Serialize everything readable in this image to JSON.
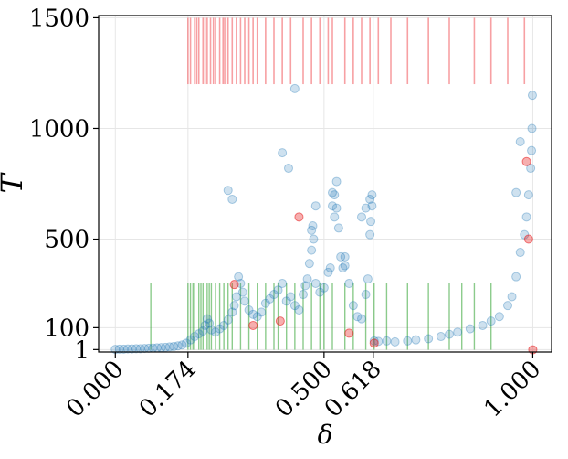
{
  "chart_data": {
    "type": "scatter",
    "xlabel": "δ",
    "ylabel": "T",
    "xlim": [
      -0.04,
      1.045
    ],
    "ylim": [
      -10,
      1510
    ],
    "x_ticks": [
      {
        "value": 0.0,
        "label": "0.000"
      },
      {
        "value": 0.174,
        "label": "0.174"
      },
      {
        "value": 0.5,
        "label": "0.500"
      },
      {
        "value": 0.618,
        "label": "0.618"
      },
      {
        "value": 1.0,
        "label": "1.000"
      }
    ],
    "y_ticks": [
      {
        "value": 1,
        "label": "1"
      },
      {
        "value": 100,
        "label": "100"
      },
      {
        "value": 500,
        "label": "500"
      },
      {
        "value": 1000,
        "label": "1000"
      },
      {
        "value": 1500,
        "label": "1500"
      }
    ],
    "x_tick_rotation_deg": 45,
    "grid": true,
    "legend": "none",
    "colors": {
      "main_points": "#1f77b4",
      "highlight_points": "#e6191b",
      "red_rug": "#f4787c",
      "green_rug": "#2ca02c",
      "grid": "#e6e6e6"
    },
    "series": [
      {
        "marker": "circle",
        "color": "#1f77b4",
        "alpha": 0.22,
        "points": [
          [
            0.0,
            2
          ],
          [
            0.01,
            3
          ],
          [
            0.02,
            3
          ],
          [
            0.03,
            4
          ],
          [
            0.04,
            4
          ],
          [
            0.05,
            5
          ],
          [
            0.06,
            5
          ],
          [
            0.07,
            6
          ],
          [
            0.08,
            7
          ],
          [
            0.09,
            8
          ],
          [
            0.1,
            9
          ],
          [
            0.11,
            10
          ],
          [
            0.12,
            11
          ],
          [
            0.13,
            13
          ],
          [
            0.14,
            15
          ],
          [
            0.15,
            18
          ],
          [
            0.16,
            22
          ],
          [
            0.17,
            30
          ],
          [
            0.18,
            45
          ],
          [
            0.19,
            60
          ],
          [
            0.2,
            72
          ],
          [
            0.21,
            85
          ],
          [
            0.215,
            110
          ],
          [
            0.22,
            140
          ],
          [
            0.225,
            120
          ],
          [
            0.23,
            90
          ],
          [
            0.24,
            80
          ],
          [
            0.25,
            95
          ],
          [
            0.26,
            110
          ],
          [
            0.27,
            135
          ],
          [
            0.28,
            170
          ],
          [
            0.285,
            200
          ],
          [
            0.29,
            240
          ],
          [
            0.295,
            330
          ],
          [
            0.3,
            300
          ],
          [
            0.305,
            260
          ],
          [
            0.31,
            220
          ],
          [
            0.32,
            180
          ],
          [
            0.33,
            160
          ],
          [
            0.34,
            150
          ],
          [
            0.35,
            170
          ],
          [
            0.36,
            210
          ],
          [
            0.37,
            230
          ],
          [
            0.38,
            250
          ],
          [
            0.39,
            270
          ],
          [
            0.4,
            300
          ],
          [
            0.41,
            220
          ],
          [
            0.42,
            240
          ],
          [
            0.43,
            200
          ],
          [
            0.44,
            180
          ],
          [
            0.45,
            250
          ],
          [
            0.455,
            290
          ],
          [
            0.46,
            320
          ],
          [
            0.465,
            390
          ],
          [
            0.47,
            450
          ],
          [
            0.48,
            300
          ],
          [
            0.49,
            260
          ],
          [
            0.5,
            280
          ],
          [
            0.51,
            350
          ],
          [
            0.515,
            370
          ],
          [
            0.52,
            650
          ],
          [
            0.525,
            700
          ],
          [
            0.53,
            640
          ],
          [
            0.535,
            550
          ],
          [
            0.54,
            420
          ],
          [
            0.55,
            380
          ],
          [
            0.56,
            300
          ],
          [
            0.57,
            200
          ],
          [
            0.58,
            150
          ],
          [
            0.59,
            140
          ],
          [
            0.6,
            250
          ],
          [
            0.605,
            320
          ],
          [
            0.61,
            520
          ],
          [
            0.612,
            580
          ],
          [
            0.615,
            650
          ],
          [
            0.62,
            40
          ],
          [
            0.63,
            38
          ],
          [
            0.65,
            40
          ],
          [
            0.67,
            36
          ],
          [
            0.7,
            40
          ],
          [
            0.72,
            45
          ],
          [
            0.75,
            50
          ],
          [
            0.78,
            60
          ],
          [
            0.8,
            70
          ],
          [
            0.82,
            80
          ],
          [
            0.85,
            95
          ],
          [
            0.88,
            110
          ],
          [
            0.9,
            130
          ],
          [
            0.92,
            150
          ],
          [
            0.94,
            200
          ],
          [
            0.95,
            240
          ],
          [
            0.96,
            330
          ],
          [
            0.97,
            440
          ],
          [
            0.98,
            520
          ],
          [
            0.985,
            600
          ],
          [
            0.99,
            700
          ],
          [
            0.995,
            820
          ],
          [
            0.997,
            900
          ],
          [
            0.998,
            1000
          ],
          [
            0.999,
            1150
          ],
          [
            0.27,
            720
          ],
          [
            0.28,
            680
          ],
          [
            0.4,
            890
          ],
          [
            0.415,
            820
          ],
          [
            0.47,
            540
          ],
          [
            0.473,
            560
          ],
          [
            0.475,
            500
          ],
          [
            0.48,
            650
          ],
          [
            0.545,
            370
          ],
          [
            0.55,
            420
          ],
          [
            0.59,
            600
          ],
          [
            0.6,
            640
          ],
          [
            0.61,
            680
          ],
          [
            0.615,
            700
          ],
          [
            0.43,
            1180
          ],
          [
            0.52,
            710
          ],
          [
            0.53,
            760
          ],
          [
            0.525,
            600
          ],
          [
            0.96,
            710
          ],
          [
            0.97,
            940
          ]
        ]
      },
      {
        "marker": "circle",
        "color": "#e6191b",
        "alpha": 0.35,
        "points": [
          [
            0.285,
            295
          ],
          [
            0.395,
            130
          ],
          [
            0.33,
            110
          ],
          [
            0.56,
            75
          ],
          [
            0.62,
            30
          ],
          [
            0.44,
            600
          ],
          [
            0.985,
            850
          ],
          [
            0.99,
            500
          ],
          [
            1.0,
            0
          ]
        ]
      }
    ],
    "rug_red": {
      "color": "#f4787c",
      "y_range": [
        1200,
        1500
      ],
      "x": [
        0.174,
        0.18,
        0.19,
        0.195,
        0.2,
        0.21,
        0.215,
        0.22,
        0.228,
        0.235,
        0.24,
        0.25,
        0.258,
        0.262,
        0.27,
        0.28,
        0.29,
        0.3,
        0.31,
        0.32,
        0.33,
        0.34,
        0.36,
        0.38,
        0.4,
        0.42,
        0.45,
        0.47,
        0.49,
        0.51,
        0.52,
        0.55,
        0.57,
        0.59,
        0.61,
        0.63,
        0.66,
        0.7,
        0.75,
        0.8,
        0.86,
        0.9,
        0.94,
        0.98
      ]
    },
    "rug_green": {
      "color": "#2ca02c",
      "y_range": [
        0,
        300
      ],
      "x": [
        0.085,
        0.174,
        0.18,
        0.186,
        0.19,
        0.2,
        0.205,
        0.21,
        0.22,
        0.225,
        0.23,
        0.24,
        0.25,
        0.26,
        0.27,
        0.28,
        0.3,
        0.32,
        0.34,
        0.36,
        0.38,
        0.39,
        0.41,
        0.43,
        0.45,
        0.47,
        0.49,
        0.5,
        0.52,
        0.55,
        0.57,
        0.6,
        0.62,
        0.65,
        0.7,
        0.75,
        0.8,
        0.83,
        0.86,
        0.9
      ]
    }
  }
}
